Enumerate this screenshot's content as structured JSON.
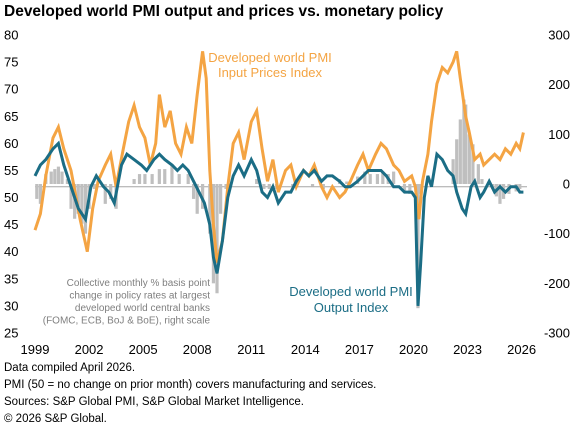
{
  "chart_data": {
    "type": "line",
    "title": "Developed world PMI output and prices vs. monetary policy",
    "x_ticks": [
      "1999",
      "2002",
      "2005",
      "2008",
      "2011",
      "2014",
      "2017",
      "2020",
      "2023",
      "2026"
    ],
    "y_left_ticks": [
      "80",
      "75",
      "70",
      "65",
      "60",
      "55",
      "50",
      "45",
      "40",
      "35",
      "30",
      "25"
    ],
    "y_right_ticks": [
      "300",
      "200",
      "100",
      "0",
      "-100",
      "-200",
      "-300"
    ],
    "ylim_left": [
      25,
      80
    ],
    "ylim_right": [
      -300,
      300
    ],
    "xlim": [
      1999,
      2026.3
    ],
    "reference_line_left": 52,
    "annotations": {
      "input_prices": [
        "Developed world PMI",
        "Input Prices Index"
      ],
      "output": [
        "Developed world PMI",
        "Output Index"
      ],
      "policy": [
        "Collective monthly % basis point",
        "change in policy rates at largest",
        "developed world central banks",
        "(FOMC, ECB, BoJ & BoE), right scale"
      ]
    },
    "colors": {
      "input_prices": "#F4A443",
      "output": "#1B6D85",
      "policy": "#BFBFBF",
      "zero_line": "#A6A6A6"
    },
    "series": [
      {
        "name": "Developed world PMI Input Prices Index",
        "axis": "left",
        "points": [
          [
            1999.0,
            44
          ],
          [
            1999.3,
            47
          ],
          [
            1999.6,
            54
          ],
          [
            2000.0,
            61
          ],
          [
            2000.3,
            63
          ],
          [
            2000.6,
            59
          ],
          [
            2001.0,
            55
          ],
          [
            2001.5,
            46
          ],
          [
            2001.9,
            40
          ],
          [
            2002.2,
            48
          ],
          [
            2002.5,
            53
          ],
          [
            2002.9,
            56
          ],
          [
            2003.2,
            58
          ],
          [
            2003.5,
            52
          ],
          [
            2003.9,
            59
          ],
          [
            2004.2,
            64
          ],
          [
            2004.5,
            67
          ],
          [
            2004.8,
            63
          ],
          [
            2005.1,
            61
          ],
          [
            2005.4,
            56
          ],
          [
            2005.7,
            60
          ],
          [
            2005.9,
            69
          ],
          [
            2006.2,
            63
          ],
          [
            2006.5,
            66
          ],
          [
            2006.8,
            60
          ],
          [
            2007.1,
            58
          ],
          [
            2007.4,
            63
          ],
          [
            2007.7,
            60
          ],
          [
            2008.0,
            69
          ],
          [
            2008.3,
            77
          ],
          [
            2008.5,
            72
          ],
          [
            2008.7,
            55
          ],
          [
            2008.9,
            45
          ],
          [
            2009.1,
            38
          ],
          [
            2009.4,
            42
          ],
          [
            2009.7,
            52
          ],
          [
            2010.0,
            60
          ],
          [
            2010.3,
            62
          ],
          [
            2010.6,
            57
          ],
          [
            2011.0,
            64
          ],
          [
            2011.3,
            66
          ],
          [
            2011.6,
            59
          ],
          [
            2011.9,
            53
          ],
          [
            2012.2,
            57
          ],
          [
            2012.5,
            51
          ],
          [
            2012.9,
            55
          ],
          [
            2013.2,
            56
          ],
          [
            2013.5,
            52
          ],
          [
            2013.9,
            55
          ],
          [
            2014.2,
            54
          ],
          [
            2014.5,
            56
          ],
          [
            2014.9,
            52
          ],
          [
            2015.2,
            50
          ],
          [
            2015.5,
            52
          ],
          [
            2015.9,
            50
          ],
          [
            2016.2,
            51
          ],
          [
            2016.5,
            53
          ],
          [
            2016.9,
            56
          ],
          [
            2017.2,
            58
          ],
          [
            2017.5,
            55
          ],
          [
            2017.9,
            58
          ],
          [
            2018.2,
            60
          ],
          [
            2018.5,
            59
          ],
          [
            2018.9,
            56
          ],
          [
            2019.2,
            55
          ],
          [
            2019.5,
            53
          ],
          [
            2019.9,
            54
          ],
          [
            2020.1,
            52
          ],
          [
            2020.3,
            46
          ],
          [
            2020.5,
            53
          ],
          [
            2020.8,
            58
          ],
          [
            2021.0,
            64
          ],
          [
            2021.3,
            71
          ],
          [
            2021.6,
            74
          ],
          [
            2021.9,
            73
          ],
          [
            2022.2,
            75
          ],
          [
            2022.4,
            77
          ],
          [
            2022.6,
            72
          ],
          [
            2022.9,
            65
          ],
          [
            2023.1,
            62
          ],
          [
            2023.4,
            57
          ],
          [
            2023.7,
            58
          ],
          [
            2023.9,
            56
          ],
          [
            2024.2,
            57
          ],
          [
            2024.5,
            58
          ],
          [
            2024.8,
            57
          ],
          [
            2025.1,
            59
          ],
          [
            2025.4,
            58
          ],
          [
            2025.7,
            60
          ],
          [
            2025.9,
            59
          ],
          [
            2026.1,
            62
          ]
        ]
      },
      {
        "name": "Developed world PMI Output Index",
        "axis": "left",
        "points": [
          [
            1999.0,
            54
          ],
          [
            1999.3,
            56
          ],
          [
            1999.6,
            57
          ],
          [
            2000.0,
            59
          ],
          [
            2000.3,
            60
          ],
          [
            2000.6,
            56
          ],
          [
            2001.0,
            52
          ],
          [
            2001.4,
            48
          ],
          [
            2001.8,
            46
          ],
          [
            2002.1,
            52
          ],
          [
            2002.4,
            54
          ],
          [
            2002.8,
            52
          ],
          [
            2003.1,
            51
          ],
          [
            2003.4,
            49
          ],
          [
            2003.8,
            56
          ],
          [
            2004.1,
            58
          ],
          [
            2004.5,
            57
          ],
          [
            2004.9,
            56
          ],
          [
            2005.2,
            55
          ],
          [
            2005.6,
            57
          ],
          [
            2005.9,
            58
          ],
          [
            2006.2,
            57
          ],
          [
            2006.6,
            56
          ],
          [
            2006.9,
            55
          ],
          [
            2007.2,
            56
          ],
          [
            2007.5,
            55
          ],
          [
            2007.8,
            53
          ],
          [
            2008.1,
            51
          ],
          [
            2008.4,
            49
          ],
          [
            2008.7,
            45
          ],
          [
            2008.9,
            39
          ],
          [
            2009.1,
            36
          ],
          [
            2009.4,
            42
          ],
          [
            2009.7,
            50
          ],
          [
            2010.0,
            54
          ],
          [
            2010.3,
            56
          ],
          [
            2010.6,
            54
          ],
          [
            2011.0,
            57
          ],
          [
            2011.3,
            55
          ],
          [
            2011.6,
            51
          ],
          [
            2011.9,
            50
          ],
          [
            2012.2,
            52
          ],
          [
            2012.5,
            49
          ],
          [
            2012.9,
            51
          ],
          [
            2013.2,
            51
          ],
          [
            2013.5,
            53
          ],
          [
            2013.9,
            55
          ],
          [
            2014.2,
            54
          ],
          [
            2014.5,
            55
          ],
          [
            2014.9,
            53
          ],
          [
            2015.2,
            54
          ],
          [
            2015.5,
            54
          ],
          [
            2015.9,
            53
          ],
          [
            2016.2,
            52
          ],
          [
            2016.5,
            52
          ],
          [
            2016.9,
            53
          ],
          [
            2017.2,
            54
          ],
          [
            2017.5,
            55
          ],
          [
            2017.9,
            55
          ],
          [
            2018.2,
            55
          ],
          [
            2018.5,
            54
          ],
          [
            2018.9,
            52
          ],
          [
            2019.2,
            52
          ],
          [
            2019.5,
            51
          ],
          [
            2019.9,
            51
          ],
          [
            2020.1,
            50
          ],
          [
            2020.25,
            30
          ],
          [
            2020.4,
            38
          ],
          [
            2020.6,
            50
          ],
          [
            2020.8,
            54
          ],
          [
            2021.0,
            52
          ],
          [
            2021.3,
            58
          ],
          [
            2021.6,
            57
          ],
          [
            2021.9,
            55
          ],
          [
            2022.2,
            54
          ],
          [
            2022.4,
            51
          ],
          [
            2022.7,
            48
          ],
          [
            2022.9,
            47
          ],
          [
            2023.2,
            52
          ],
          [
            2023.4,
            53
          ],
          [
            2023.7,
            50
          ],
          [
            2023.9,
            51
          ],
          [
            2024.2,
            53
          ],
          [
            2024.5,
            51
          ],
          [
            2024.8,
            52
          ],
          [
            2025.1,
            51
          ],
          [
            2025.4,
            52
          ],
          [
            2025.7,
            52
          ],
          [
            2025.9,
            51
          ],
          [
            2026.1,
            51
          ]
        ]
      },
      {
        "name": "Collective monthly % basis point change in policy rates",
        "axis": "right",
        "type": "bar",
        "points": [
          [
            1999.1,
            -30
          ],
          [
            1999.3,
            -40
          ],
          [
            1999.6,
            20
          ],
          [
            1999.9,
            25
          ],
          [
            2000.1,
            30
          ],
          [
            2000.3,
            35
          ],
          [
            2000.5,
            25
          ],
          [
            2000.8,
            10
          ],
          [
            2001.0,
            -50
          ],
          [
            2001.2,
            -70
          ],
          [
            2001.4,
            -60
          ],
          [
            2001.6,
            -80
          ],
          [
            2001.8,
            -100
          ],
          [
            2002.0,
            -50
          ],
          [
            2002.3,
            -10
          ],
          [
            2002.9,
            -40
          ],
          [
            2003.2,
            -30
          ],
          [
            2003.5,
            -50
          ],
          [
            2004.5,
            10
          ],
          [
            2004.8,
            20
          ],
          [
            2005.1,
            20
          ],
          [
            2005.5,
            20
          ],
          [
            2005.9,
            30
          ],
          [
            2006.2,
            30
          ],
          [
            2006.6,
            40
          ],
          [
            2007.0,
            20
          ],
          [
            2007.5,
            20
          ],
          [
            2007.8,
            -30
          ],
          [
            2008.0,
            -60
          ],
          [
            2008.3,
            -50
          ],
          [
            2008.7,
            -100
          ],
          [
            2008.9,
            -200
          ],
          [
            2009.1,
            -220
          ],
          [
            2009.3,
            -60
          ],
          [
            2009.6,
            -10
          ],
          [
            2011.3,
            10
          ],
          [
            2011.7,
            -10
          ],
          [
            2012.0,
            -10
          ],
          [
            2012.4,
            -10
          ],
          [
            2013.3,
            -5
          ],
          [
            2014.4,
            -5
          ],
          [
            2015.0,
            -10
          ],
          [
            2015.9,
            10
          ],
          [
            2016.3,
            5
          ],
          [
            2016.9,
            15
          ],
          [
            2017.3,
            25
          ],
          [
            2017.6,
            20
          ],
          [
            2018.0,
            20
          ],
          [
            2018.3,
            25
          ],
          [
            2018.6,
            20
          ],
          [
            2018.9,
            25
          ],
          [
            2019.5,
            -15
          ],
          [
            2019.8,
            -20
          ],
          [
            2020.2,
            -80
          ],
          [
            2020.25,
            -250
          ],
          [
            2020.4,
            -20
          ],
          [
            2022.2,
            50
          ],
          [
            2022.4,
            90
          ],
          [
            2022.6,
            130
          ],
          [
            2022.8,
            170
          ],
          [
            2022.9,
            160
          ],
          [
            2023.1,
            100
          ],
          [
            2023.3,
            80
          ],
          [
            2023.6,
            40
          ],
          [
            2023.8,
            10
          ],
          [
            2024.4,
            -10
          ],
          [
            2024.6,
            -25
          ],
          [
            2024.8,
            -40
          ],
          [
            2025.0,
            -30
          ],
          [
            2025.3,
            -20
          ],
          [
            2025.7,
            -15
          ],
          [
            2025.9,
            -10
          ]
        ]
      }
    ]
  },
  "footer": {
    "line1": "Data compiled April 2026.",
    "line2": "PMI (50 = no change on prior month) covers manufacturing and services.",
    "line3": "Sources: S&P Global PMI, S&P Global Market Intelligence.",
    "line4": "© 2026 S&P Global."
  }
}
